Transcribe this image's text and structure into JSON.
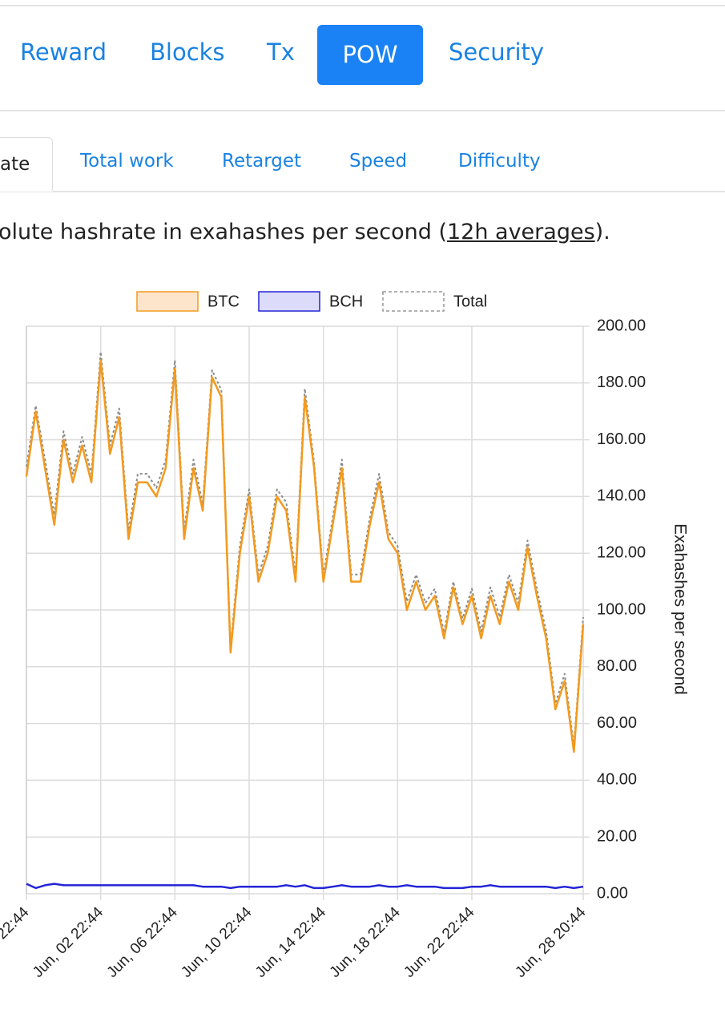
{
  "nav": {
    "tabs": [
      "Reward",
      "Blocks",
      "Tx",
      "POW",
      "Security"
    ],
    "active": 3
  },
  "subnav": {
    "tabs": [
      "ate",
      "Total work",
      "Retarget",
      "Speed",
      "Difficulty"
    ],
    "active": 0
  },
  "description": {
    "before": "olute hashrate in exahashes per second (",
    "link": "12h averages",
    "after": ")."
  },
  "chart_data": {
    "type": "line",
    "categories": [
      "22:44",
      null,
      null,
      null,
      null,
      null,
      null,
      null,
      "Jun, 02 22:44",
      null,
      null,
      null,
      null,
      null,
      null,
      null,
      "Jun, 06 22:44",
      null,
      null,
      null,
      null,
      null,
      null,
      null,
      "Jun, 10 22:44",
      null,
      null,
      null,
      null,
      null,
      null,
      null,
      "Jun, 14 22:44",
      null,
      null,
      null,
      null,
      null,
      null,
      null,
      "Jun, 18 22:44",
      null,
      null,
      null,
      null,
      null,
      null,
      null,
      "Jun, 22 22:44",
      null,
      null,
      null,
      null,
      null,
      null,
      null,
      null,
      null,
      null,
      null,
      "Jun, 28 20:44"
    ],
    "series": [
      {
        "name": "BTC",
        "color": "#f39a1e",
        "fill": "#fde5cc",
        "values": [
          147,
          170,
          150,
          130,
          160,
          145,
          158,
          145,
          188,
          155,
          168,
          125,
          145,
          145,
          140,
          150,
          185,
          125,
          150,
          135,
          182,
          175,
          85,
          120,
          140,
          110,
          120,
          140,
          135,
          110,
          175,
          150,
          110,
          130,
          150,
          110,
          110,
          130,
          145,
          125,
          120,
          100,
          110,
          100,
          105,
          90,
          108,
          95,
          105,
          90,
          105,
          95,
          110,
          100,
          122,
          105,
          90,
          65,
          75,
          50,
          95
        ]
      },
      {
        "name": "BCH",
        "color": "#2424d8",
        "fill": "#dcdcfa",
        "values": [
          3.5,
          2,
          3,
          3.5,
          3,
          3,
          3,
          3,
          3,
          3,
          3,
          3,
          3,
          3,
          3,
          3,
          3,
          3,
          3,
          2.5,
          2.5,
          2.5,
          2,
          2.5,
          2.5,
          2.5,
          2.5,
          2.5,
          3,
          2.5,
          3,
          2,
          2,
          2.5,
          3,
          2.5,
          2.5,
          2.5,
          3,
          2.5,
          2.5,
          3,
          2.5,
          2.5,
          2.5,
          2,
          2,
          2,
          2.5,
          2.5,
          3,
          2.5,
          2.5,
          2.5,
          2.5,
          2.5,
          2.5,
          2,
          2.5,
          2,
          2.5
        ]
      },
      {
        "name": "Total",
        "color": "#8a8a8a",
        "fill": "#ffffff",
        "dashed": true,
        "values": [
          150.5,
          172,
          153,
          133.5,
          163,
          148,
          161,
          148,
          191,
          158,
          171,
          128,
          148,
          148,
          143,
          153,
          188,
          128,
          153,
          137.5,
          184.5,
          177.5,
          87,
          122.5,
          142.5,
          112.5,
          122.5,
          142.5,
          138,
          112.5,
          178,
          152,
          112,
          132.5,
          153,
          112.5,
          112.5,
          132.5,
          148,
          127.5,
          122.5,
          103,
          112.5,
          102.5,
          107.5,
          92,
          110,
          97,
          107.5,
          92.5,
          108,
          97.5,
          112.5,
          102.5,
          124.5,
          107.5,
          92.5,
          67,
          77.5,
          52,
          97.5
        ]
      }
    ],
    "y_label": "Exahashes per second",
    "ylim": [
      0,
      200
    ],
    "yticks": [
      {
        "value": 0,
        "label": "0.00"
      },
      {
        "value": 20,
        "label": "20.00"
      },
      {
        "value": 40,
        "label": "40.00"
      },
      {
        "value": 60,
        "label": "60.00"
      },
      {
        "value": 80,
        "label": "80.00"
      },
      {
        "value": 100,
        "label": "100.00"
      },
      {
        "value": 120,
        "label": "120.00"
      },
      {
        "value": 140,
        "label": "140.00"
      },
      {
        "value": 160,
        "label": "160.00"
      },
      {
        "value": 180,
        "label": "180.00"
      },
      {
        "value": 200,
        "label": "200.00"
      }
    ],
    "grid": true,
    "legend": "top"
  }
}
